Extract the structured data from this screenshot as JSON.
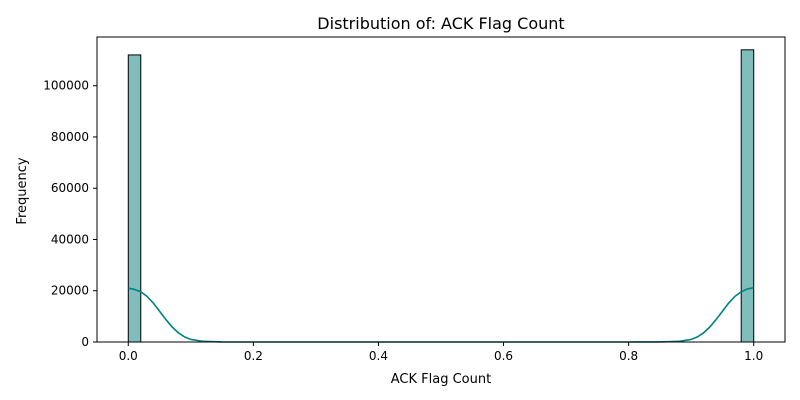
{
  "chart_data": {
    "type": "bar",
    "title": "Distribution of: ACK Flag Count",
    "xlabel": "ACK Flag Count",
    "ylabel": "Frequency",
    "xlim": [
      -0.05,
      1.05
    ],
    "ylim": [
      0,
      119000
    ],
    "xticks": [
      0.0,
      0.2,
      0.4,
      0.6,
      0.8,
      1.0
    ],
    "xtick_labels": [
      "0.0",
      "0.2",
      "0.4",
      "0.6",
      "0.8",
      "1.0"
    ],
    "yticks": [
      0,
      20000,
      40000,
      60000,
      80000,
      100000
    ],
    "ytick_labels": [
      "0",
      "20000",
      "40000",
      "60000",
      "80000",
      "100000"
    ],
    "grid": false,
    "bins": [
      {
        "x0": 0.0,
        "x1": 0.02,
        "count": 112000
      },
      {
        "x0": 0.98,
        "x1": 1.0,
        "count": 114000
      }
    ],
    "kde": {
      "x": [
        0.0,
        0.01,
        0.02,
        0.03,
        0.04,
        0.05,
        0.06,
        0.07,
        0.08,
        0.09,
        0.1,
        0.12,
        0.15,
        0.2,
        0.5,
        0.8,
        0.85,
        0.88,
        0.9,
        0.91,
        0.92,
        0.93,
        0.94,
        0.95,
        0.96,
        0.97,
        0.98,
        0.99,
        1.0
      ],
      "y": [
        21000,
        20500,
        19600,
        17800,
        15200,
        12000,
        8800,
        5900,
        3600,
        2000,
        1000,
        250,
        30,
        0,
        0,
        0,
        30,
        250,
        1000,
        2000,
        3600,
        5900,
        8800,
        12000,
        15200,
        17800,
        19600,
        20700,
        21200
      ]
    },
    "colors": {
      "bar_fill": "#80bdbd",
      "bar_edge": "#000000",
      "kde_line": "#008080"
    }
  }
}
